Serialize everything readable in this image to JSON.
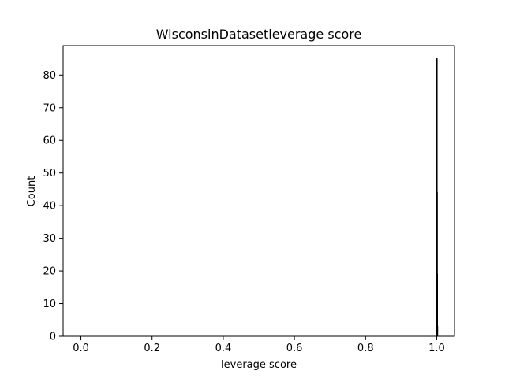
{
  "chart_data": {
    "type": "bar",
    "title": "WisconsinDatasetleverage score",
    "xlabel": "leverage score",
    "ylabel": "Count",
    "xlim": [
      -0.05,
      1.05
    ],
    "ylim": [
      0,
      89
    ],
    "xticks": [
      0.0,
      0.2,
      0.4,
      0.6,
      0.8,
      1.0
    ],
    "xtick_labels": [
      "0.0",
      "0.2",
      "0.4",
      "0.6",
      "0.8",
      "1.0"
    ],
    "yticks": [
      0,
      10,
      20,
      30,
      40,
      50,
      60,
      70,
      80
    ],
    "ytick_labels": [
      "0",
      "10",
      "20",
      "30",
      "40",
      "50",
      "60",
      "70",
      "80"
    ],
    "bins": [
      {
        "x0": 0.999,
        "x1": 0.9995,
        "count": 1
      },
      {
        "x0": 0.9995,
        "x1": 1.0,
        "count": 51
      },
      {
        "x0": 1.0,
        "x1": 1.0005,
        "count": 85
      },
      {
        "x0": 1.0005,
        "x1": 1.001,
        "count": 44
      },
      {
        "x0": 1.001,
        "x1": 1.0015,
        "count": 19
      },
      {
        "x0": 1.0015,
        "x1": 1.002,
        "count": 3
      }
    ],
    "bar_color": "#1f77b4",
    "edge_color": "#000000",
    "grid": false
  }
}
